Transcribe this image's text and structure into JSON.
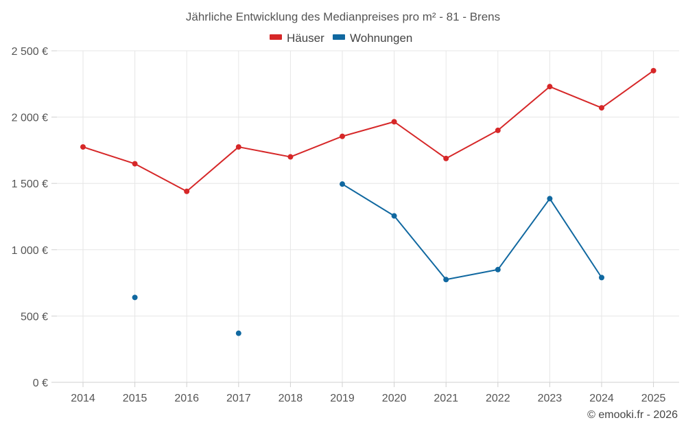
{
  "chart_data": {
    "type": "line",
    "title": "Jährliche Entwicklung des Medianpreises pro m² - 81 - Brens",
    "xlabel": "",
    "ylabel": "",
    "categories": [
      "2014",
      "2015",
      "2016",
      "2017",
      "2018",
      "2019",
      "2020",
      "2021",
      "2022",
      "2023",
      "2024",
      "2025"
    ],
    "ylim": [
      0,
      2500
    ],
    "yticks": [
      0,
      500,
      1000,
      1500,
      2000,
      2500
    ],
    "ytick_labels": [
      "0 €",
      "500 €",
      "1 000 €",
      "1 500 €",
      "2 000 €",
      "2 500 €"
    ],
    "grid": true,
    "legend_position": "top-center",
    "series": [
      {
        "name": "Häuser",
        "color": "#d62728",
        "values": [
          1775,
          1648,
          1440,
          1775,
          1700,
          1855,
          1965,
          1688,
          1900,
          2230,
          2070,
          2350
        ]
      },
      {
        "name": "Wohnungen",
        "color": "#1068a0",
        "values": [
          null,
          640,
          null,
          370,
          null,
          1495,
          1255,
          775,
          850,
          1385,
          790,
          null
        ]
      }
    ]
  },
  "credit": "© emooki.fr - 2026"
}
